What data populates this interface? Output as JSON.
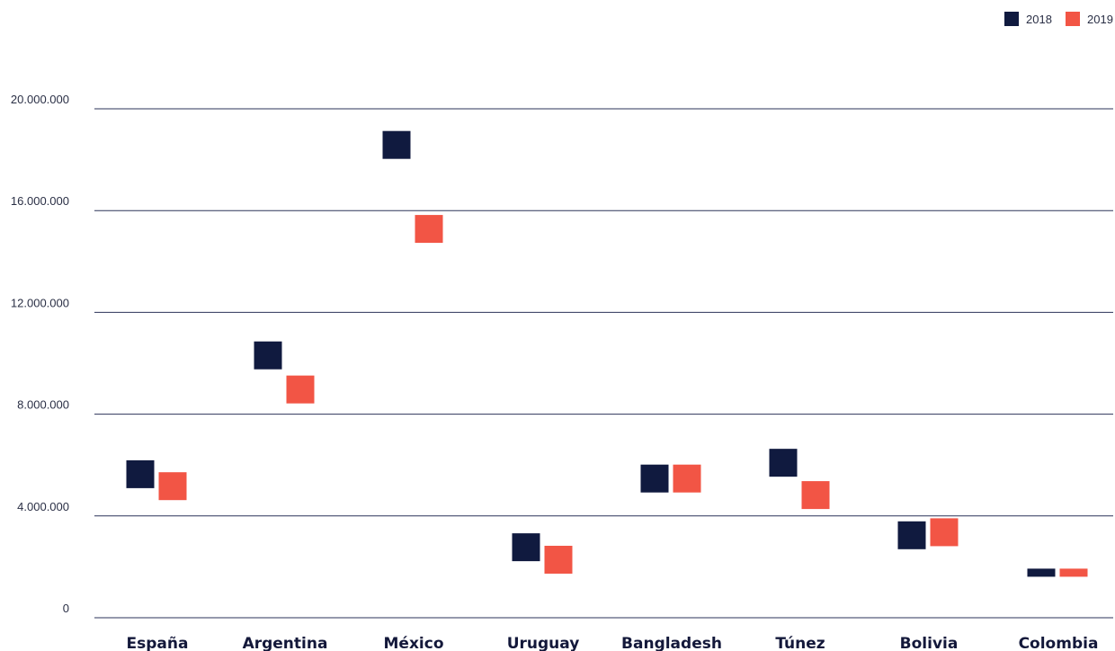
{
  "chart_data": {
    "type": "scatter",
    "marker": "square",
    "categories": [
      "España",
      "Argentina",
      "México",
      "Uruguay",
      "Bangladesh",
      "Túnez",
      "Bolivia",
      "Colombia"
    ],
    "series": [
      {
        "name": "2018",
        "color": "#101a3f",
        "values": [
          5640000,
          10310000,
          18580000,
          2770000,
          5470000,
          6090000,
          3240000,
          1770000
        ]
      },
      {
        "name": "2019",
        "color": "#f25545",
        "values": [
          5170000,
          8970000,
          15280000,
          2280000,
          5470000,
          4820000,
          3360000,
          1770000
        ]
      }
    ],
    "yticks": [
      "0",
      "4.000.000",
      "8.000.000",
      "12.000.000",
      "16.000.000",
      "20.000.000"
    ],
    "ylim": [
      0,
      20000000
    ],
    "grid": true,
    "legend": "top-right",
    "title": "",
    "xlabel": "",
    "ylabel": ""
  }
}
